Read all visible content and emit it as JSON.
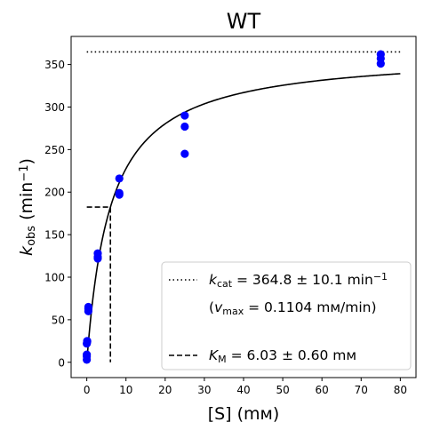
{
  "chart_data": {
    "type": "scatter",
    "title": "WT",
    "xlabel": "[S] (mм)",
    "ylabel": {
      "main": "k",
      "sub": "obs",
      "unit": " (min",
      "sup": "−1",
      "close": ")"
    },
    "xlim": [
      -4,
      84
    ],
    "ylim": [
      -18,
      383
    ],
    "xticks": [
      "0",
      "10",
      "20",
      "30",
      "40",
      "50",
      "60",
      "70",
      "80"
    ],
    "yticks": [
      "0",
      "50",
      "100",
      "150",
      "200",
      "250",
      "300",
      "350"
    ],
    "grid": false,
    "legend_position": "bottom-right",
    "colors": {
      "points": "#0000ff",
      "lines": "#000000"
    },
    "series": [
      {
        "type": "scatter",
        "x": [
          0,
          0,
          0,
          0,
          0.1,
          0.1,
          0.4,
          0.4,
          0.4,
          2.8,
          2.8,
          2.8,
          8.3,
          8.3,
          8.3,
          25,
          25,
          25,
          75,
          75,
          75
        ],
        "y": [
          3,
          7,
          9,
          22,
          24,
          25,
          60,
          63,
          65,
          122,
          124,
          128,
          197,
          199,
          216,
          245,
          277,
          290,
          351,
          357,
          362
        ]
      },
      {
        "type": "line",
        "style": "solid",
        "model": "michaelis-menten",
        "kcat": 364.8,
        "km": 6.03,
        "x_range": [
          0,
          80
        ]
      },
      {
        "type": "line",
        "style": "dotted",
        "x": [
          0,
          80
        ],
        "y": [
          364.8,
          364.8
        ]
      },
      {
        "type": "line",
        "style": "dashed",
        "x": [
          0,
          6.03,
          6.03
        ],
        "y": [
          182.4,
          182.4,
          0
        ]
      }
    ],
    "legend": [
      {
        "style": "dotted",
        "parts": [
          {
            "t": "k",
            "i": true
          },
          {
            "t": "cat",
            "sub": true
          },
          {
            "t": " = 364.8 ± 10.1 min"
          },
          {
            "t": "−1",
            "sup": true
          }
        ]
      },
      {
        "style": "none",
        "parts": [
          {
            "t": "("
          },
          {
            "t": "v",
            "i": true
          },
          {
            "t": "max",
            "sub": true
          },
          {
            "t": " = 0.1104 mм/min)"
          }
        ]
      },
      {
        "style": "dashed",
        "parts": [
          {
            "t": "K",
            "i": true
          },
          {
            "t": "M",
            "sub": true
          },
          {
            "t": " = 6.03 ± 0.60 mм"
          }
        ]
      }
    ]
  }
}
